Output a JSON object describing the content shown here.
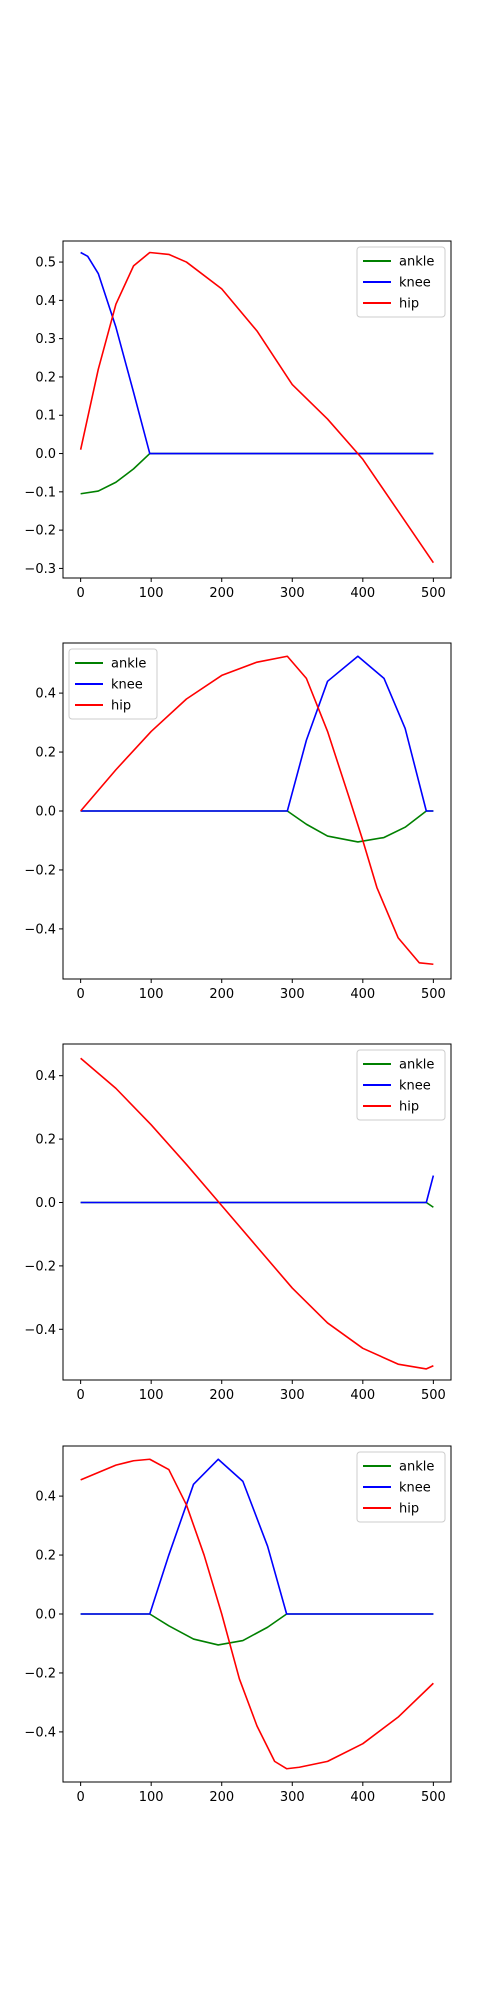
{
  "chart_data": [
    {
      "type": "line",
      "xlim": [
        -25,
        525
      ],
      "ylim": [
        -0.325,
        0.555
      ],
      "xticks": [
        0,
        100,
        200,
        300,
        400,
        500
      ],
      "xtick_labels": [
        "0",
        "100",
        "200",
        "300",
        "400",
        "500"
      ],
      "yticks": [
        -0.3,
        -0.2,
        -0.1,
        0.0,
        0.1,
        0.2,
        0.3,
        0.4,
        0.5
      ],
      "ytick_labels": [
        "−0.3",
        "−0.2",
        "−0.1",
        "0.0",
        "0.1",
        "0.2",
        "0.3",
        "0.4",
        "0.5"
      ],
      "legend_position": "top-right",
      "series": [
        {
          "name": "ankle",
          "color": "#008000",
          "x": [
            0,
            25,
            50,
            75,
            98,
            125,
            200,
            300,
            400,
            500
          ],
          "y": [
            -0.105,
            -0.098,
            -0.075,
            -0.04,
            0.0,
            0.0,
            0.0,
            0.0,
            0.0,
            0.0
          ]
        },
        {
          "name": "knee",
          "color": "#0000ff",
          "x": [
            0,
            10,
            25,
            50,
            75,
            98,
            125,
            200,
            300,
            400,
            500
          ],
          "y": [
            0.525,
            0.515,
            0.47,
            0.33,
            0.16,
            0.0,
            0.0,
            0.0,
            0.0,
            0.0,
            0.0
          ]
        },
        {
          "name": "hip",
          "color": "#ff0000",
          "x": [
            0,
            25,
            50,
            75,
            98,
            125,
            150,
            200,
            250,
            300,
            350,
            400,
            450,
            500
          ],
          "y": [
            0.01,
            0.22,
            0.39,
            0.49,
            0.525,
            0.52,
            0.5,
            0.43,
            0.32,
            0.18,
            0.09,
            -0.015,
            -0.15,
            -0.285
          ]
        }
      ]
    },
    {
      "type": "line",
      "xlim": [
        -25,
        525
      ],
      "ylim": [
        -0.57,
        0.57
      ],
      "xticks": [
        0,
        100,
        200,
        300,
        400,
        500
      ],
      "xtick_labels": [
        "0",
        "100",
        "200",
        "300",
        "400",
        "500"
      ],
      "yticks": [
        -0.4,
        -0.2,
        0.0,
        0.2,
        0.4
      ],
      "ytick_labels": [
        "−0.4",
        "−0.2",
        "0.0",
        "0.2",
        "0.4"
      ],
      "legend_position": "top-left",
      "series": [
        {
          "name": "ankle",
          "color": "#008000",
          "x": [
            0,
            100,
            200,
            293,
            320,
            350,
            393,
            430,
            460,
            490,
            500
          ],
          "y": [
            0.0,
            0.0,
            0.0,
            0.0,
            -0.045,
            -0.085,
            -0.105,
            -0.09,
            -0.055,
            0.0,
            0.0
          ]
        },
        {
          "name": "knee",
          "color": "#0000ff",
          "x": [
            0,
            100,
            200,
            293,
            320,
            350,
            393,
            430,
            460,
            490,
            500
          ],
          "y": [
            0.0,
            0.0,
            0.0,
            0.0,
            0.24,
            0.44,
            0.525,
            0.45,
            0.28,
            0.0,
            0.0
          ]
        },
        {
          "name": "hip",
          "color": "#ff0000",
          "x": [
            0,
            50,
            100,
            150,
            200,
            250,
            293,
            320,
            350,
            380,
            400,
            420,
            450,
            480,
            500
          ],
          "y": [
            0.0,
            0.14,
            0.27,
            0.38,
            0.46,
            0.505,
            0.525,
            0.45,
            0.27,
            0.05,
            -0.1,
            -0.26,
            -0.43,
            -0.515,
            -0.52
          ]
        }
      ]
    },
    {
      "type": "line",
      "xlim": [
        -25,
        525
      ],
      "ylim": [
        -0.56,
        0.5
      ],
      "xticks": [
        0,
        100,
        200,
        300,
        400,
        500
      ],
      "xtick_labels": [
        "0",
        "100",
        "200",
        "300",
        "400",
        "500"
      ],
      "yticks": [
        -0.4,
        -0.2,
        0.0,
        0.2,
        0.4
      ],
      "ytick_labels": [
        "−0.4",
        "−0.2",
        "0.0",
        "0.2",
        "0.4"
      ],
      "legend_position": "top-right",
      "series": [
        {
          "name": "ankle",
          "color": "#008000",
          "x": [
            0,
            100,
            200,
            300,
            400,
            490,
            500
          ],
          "y": [
            0.0,
            0.0,
            0.0,
            0.0,
            0.0,
            0.0,
            -0.015
          ]
        },
        {
          "name": "knee",
          "color": "#0000ff",
          "x": [
            0,
            100,
            200,
            300,
            400,
            490,
            500
          ],
          "y": [
            0.0,
            0.0,
            0.0,
            0.0,
            0.0,
            0.0,
            0.085
          ]
        },
        {
          "name": "hip",
          "color": "#ff0000",
          "x": [
            0,
            50,
            100,
            150,
            200,
            250,
            300,
            350,
            400,
            450,
            490,
            500
          ],
          "y": [
            0.455,
            0.36,
            0.245,
            0.12,
            -0.01,
            -0.14,
            -0.27,
            -0.38,
            -0.46,
            -0.51,
            -0.525,
            -0.515
          ]
        }
      ]
    },
    {
      "type": "line",
      "xlim": [
        -25,
        525
      ],
      "ylim": [
        -0.57,
        0.57
      ],
      "xticks": [
        0,
        100,
        200,
        300,
        400,
        500
      ],
      "xtick_labels": [
        "0",
        "100",
        "200",
        "300",
        "400",
        "500"
      ],
      "yticks": [
        -0.4,
        -0.2,
        0.0,
        0.2,
        0.4
      ],
      "ytick_labels": [
        "−0.4",
        "−0.2",
        "0.0",
        "0.2",
        "0.4"
      ],
      "legend_position": "top-right",
      "series": [
        {
          "name": "ankle",
          "color": "#008000",
          "x": [
            0,
            98,
            125,
            160,
            195,
            230,
            265,
            292,
            350,
            400,
            500
          ],
          "y": [
            0.0,
            0.0,
            -0.04,
            -0.085,
            -0.105,
            -0.09,
            -0.045,
            0.0,
            0.0,
            0.0,
            0.0
          ]
        },
        {
          "name": "knee",
          "color": "#0000ff",
          "x": [
            0,
            98,
            125,
            160,
            195,
            230,
            265,
            292,
            350,
            400,
            500
          ],
          "y": [
            0.0,
            0.0,
            0.2,
            0.44,
            0.525,
            0.45,
            0.23,
            0.0,
            0.0,
            0.0,
            0.0
          ]
        },
        {
          "name": "hip",
          "color": "#ff0000",
          "x": [
            0,
            25,
            50,
            75,
            98,
            125,
            150,
            175,
            200,
            225,
            250,
            275,
            292,
            310,
            350,
            400,
            450,
            500
          ],
          "y": [
            0.455,
            0.48,
            0.505,
            0.52,
            0.525,
            0.49,
            0.37,
            0.2,
            0.0,
            -0.22,
            -0.38,
            -0.5,
            -0.525,
            -0.52,
            -0.5,
            -0.44,
            -0.35,
            -0.235
          ]
        }
      ]
    }
  ]
}
